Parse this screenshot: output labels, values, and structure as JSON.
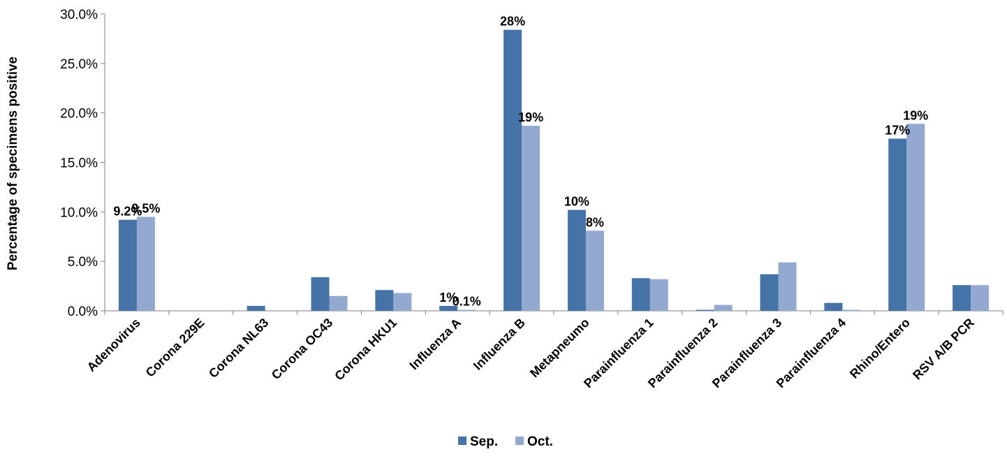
{
  "chart_data": {
    "type": "bar",
    "ylabel": "Percentage of specimens positive",
    "xlabel": "",
    "ylim": [
      0,
      30
    ],
    "yticks": [
      "0.0%",
      "5.0%",
      "10.0%",
      "15.0%",
      "20.0%",
      "25.0%",
      "30.0%"
    ],
    "grid": false,
    "legend_position": "bottom",
    "categories": [
      "Adenovirus",
      "Corona 229E",
      "Corona NL63",
      "Corona OC43",
      "Corona HKU1",
      "Influenza A",
      "Influenza B",
      "Metapneumo",
      "Parainfluenza 1",
      "Parainfluenza 2",
      "Parainfluenza 3",
      "Parainfluenza 4",
      "Rhino/Entero",
      "RSV A/B PCR"
    ],
    "series": [
      {
        "name": "Sep.",
        "color": "#4572a7",
        "values": [
          9.2,
          0.0,
          0.5,
          3.4,
          2.1,
          0.5,
          28.4,
          10.2,
          3.3,
          0.1,
          3.7,
          0.8,
          17.4,
          2.6
        ],
        "labels": [
          "9.2%",
          "",
          "",
          "",
          "",
          "1%",
          "28%",
          "10%",
          "",
          "",
          "",
          "",
          "17%",
          ""
        ]
      },
      {
        "name": "Oct.",
        "color": "#93a9d0",
        "values": [
          9.5,
          0.0,
          0.0,
          1.5,
          1.8,
          0.1,
          18.7,
          8.1,
          3.2,
          0.6,
          4.9,
          0.1,
          18.9,
          2.6
        ],
        "labels": [
          "9.5%",
          "",
          "",
          "",
          "",
          "0.1%",
          "19%",
          "8%",
          "",
          "",
          "",
          "",
          "19%",
          ""
        ]
      }
    ]
  }
}
